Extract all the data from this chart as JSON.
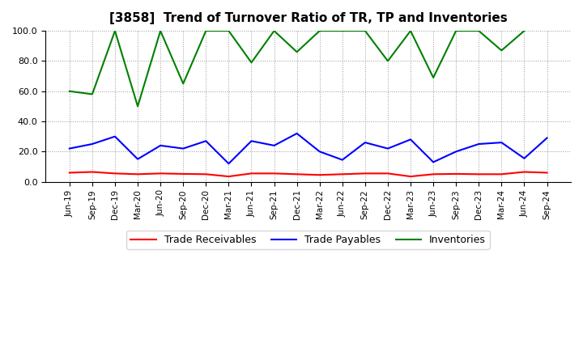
{
  "title": "[3858]  Trend of Turnover Ratio of TR, TP and Inventories",
  "x_labels": [
    "Jun-19",
    "Sep-19",
    "Dec-19",
    "Mar-20",
    "Jun-20",
    "Sep-20",
    "Dec-20",
    "Mar-21",
    "Jun-21",
    "Sep-21",
    "Dec-21",
    "Mar-22",
    "Jun-22",
    "Sep-22",
    "Dec-22",
    "Mar-23",
    "Jun-23",
    "Sep-23",
    "Dec-23",
    "Mar-24",
    "Jun-24",
    "Sep-24"
  ],
  "trade_receivables": [
    6.0,
    6.5,
    5.5,
    5.0,
    5.5,
    5.2,
    5.0,
    3.5,
    5.5,
    5.5,
    5.0,
    4.5,
    5.0,
    5.5,
    5.5,
    3.5,
    5.0,
    5.2,
    5.0,
    5.0,
    6.5,
    6.0
  ],
  "trade_payables": [
    22.0,
    25.0,
    30.0,
    15.0,
    24.0,
    22.0,
    27.0,
    12.0,
    27.0,
    24.0,
    32.0,
    20.0,
    14.5,
    26.0,
    22.0,
    28.0,
    13.0,
    20.0,
    25.0,
    26.0,
    15.5,
    29.0
  ],
  "inventories": [
    60.0,
    58.0,
    100.0,
    50.0,
    100.0,
    65.0,
    100.0,
    100.0,
    79.0,
    100.0,
    86.0,
    100.0,
    100.0,
    100.0,
    80.0,
    100.0,
    69.0,
    100.0,
    100.0,
    87.0,
    100.0,
    null
  ],
  "ylim": [
    0.0,
    100.0
  ],
  "yticks": [
    0.0,
    20.0,
    40.0,
    60.0,
    80.0,
    100.0
  ],
  "line_colors": {
    "trade_receivables": "#ff0000",
    "trade_payables": "#0000ff",
    "inventories": "#008000"
  },
  "legend_labels": [
    "Trade Receivables",
    "Trade Payables",
    "Inventories"
  ],
  "background_color": "#ffffff"
}
